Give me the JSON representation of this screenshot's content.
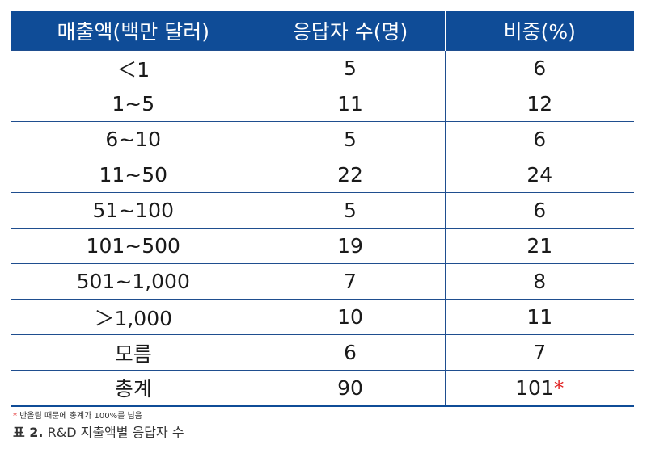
{
  "table": {
    "headers": [
      "매출액(백만 달러)",
      "응답자 수(명)",
      "비중(%)"
    ],
    "rows": [
      [
        "＜1",
        "5",
        "6"
      ],
      [
        "1~5",
        "11",
        "12"
      ],
      [
        "6~10",
        "5",
        "6"
      ],
      [
        "11~50",
        "22",
        "24"
      ],
      [
        "51~100",
        "5",
        "6"
      ],
      [
        "101~500",
        "19",
        "21"
      ],
      [
        "501~1,000",
        "7",
        "8"
      ],
      [
        "＞1,000",
        "10",
        "11"
      ],
      [
        "모름",
        "6",
        "7"
      ],
      [
        "총계",
        "90",
        "101"
      ]
    ],
    "total_asterisk": "*"
  },
  "footnote": {
    "star": "*",
    "text": " 반올림 때문에 총계가 100%를 넘음"
  },
  "caption": {
    "label": "표 2.",
    "text": " R&D 지출액별 응답자 수"
  }
}
